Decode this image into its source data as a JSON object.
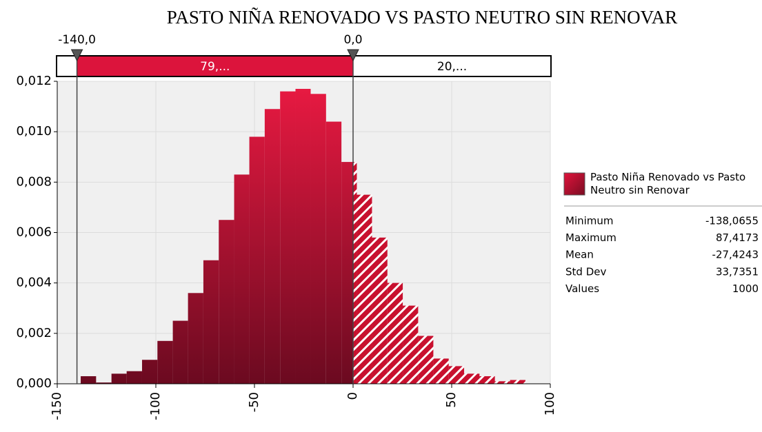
{
  "chart_data": {
    "type": "histogram",
    "title": "PASTO NIÑA RENOVADO VS PASTO NEUTRO SIN RENOVAR",
    "bins": [
      -138.1,
      -130.3,
      -122.5,
      -114.8,
      -107.0,
      -99.2,
      -91.4,
      -83.7,
      -75.9,
      -68.1,
      -60.3,
      -52.6,
      -44.8,
      -37.0,
      -29.2,
      -21.5,
      -13.7,
      -5.9,
      1.9,
      9.6,
      17.4,
      25.2,
      33.0,
      40.7,
      48.5,
      56.3,
      64.1,
      71.9,
      79.6,
      87.4
    ],
    "series": [
      {
        "name": "Pasto Niña Renovado vs Pasto Neutro sin Renovar",
        "color": "#dc143c",
        "values": [
          0.0003,
          5e-05,
          0.0004,
          0.0005,
          0.00095,
          0.0017,
          0.0025,
          0.0036,
          0.0049,
          0.0065,
          0.0083,
          0.0098,
          0.0109,
          0.0116,
          0.0117,
          0.0115,
          0.0104,
          0.0088,
          0.0075,
          0.0058,
          0.004,
          0.0031,
          0.0019,
          0.001,
          0.0007,
          0.0004,
          0.0003,
          0.0001,
          0.00015
        ]
      }
    ],
    "xlim": [
      -150,
      100
    ],
    "xticks": [
      -150,
      -100,
      -50,
      0,
      50,
      100
    ],
    "ylim": [
      0,
      0.012
    ],
    "yticks": [
      {
        "value": 0,
        "label": "0,000"
      },
      {
        "value": 0.002,
        "label": "0,002"
      },
      {
        "value": 0.004,
        "label": "0,004"
      },
      {
        "value": 0.006,
        "label": "0,006"
      },
      {
        "value": 0.008,
        "label": "0,008"
      },
      {
        "value": 0.01,
        "label": "0,010"
      },
      {
        "value": 0.012,
        "label": "0,012"
      }
    ],
    "grid": true,
    "delimiters": [
      {
        "value": -140,
        "label": "-140,0"
      },
      {
        "value": 0,
        "label": "0,0"
      }
    ],
    "region_labels": [
      "79,...",
      "20,..."
    ],
    "stats": [
      {
        "label": "Minimum",
        "value": "-138,0655"
      },
      {
        "label": "Maximum",
        "value": "87,4173"
      },
      {
        "label": "Mean",
        "value": "-27,4243"
      },
      {
        "label": "Std Dev",
        "value": "33,7351"
      },
      {
        "label": "Values",
        "value": "1000"
      }
    ]
  }
}
